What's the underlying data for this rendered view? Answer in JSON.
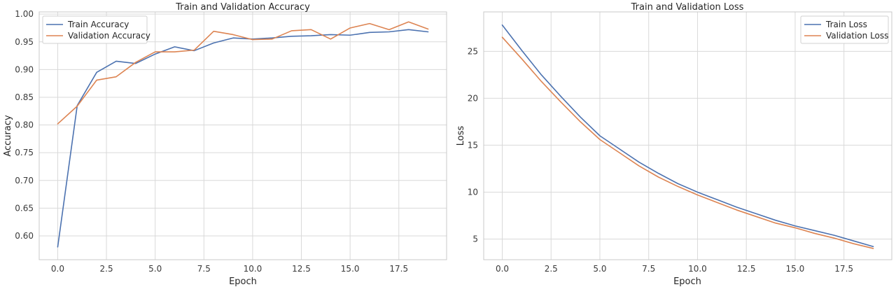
{
  "chart_data": [
    {
      "type": "line",
      "title": "Train and Validation Accuracy",
      "xlabel": "Epoch",
      "ylabel": "Accuracy",
      "xlim": [
        -0.95,
        19.95
      ],
      "ylim": [
        0.557,
        1.004
      ],
      "xticks": [
        0.0,
        2.5,
        5.0,
        7.5,
        10.0,
        12.5,
        15.0,
        17.5
      ],
      "yticks": [
        0.6,
        0.65,
        0.7,
        0.75,
        0.8,
        0.85,
        0.9,
        0.95,
        1.0
      ],
      "xtick_labels": [
        "0.0",
        "2.5",
        "5.0",
        "7.5",
        "10.0",
        "12.5",
        "15.0",
        "17.5"
      ],
      "ytick_labels": [
        "0.60",
        "0.65",
        "0.70",
        "0.75",
        "0.80",
        "0.85",
        "0.90",
        "0.95",
        "1.00"
      ],
      "grid": true,
      "legend": "top-left",
      "x": [
        0,
        1,
        2,
        3,
        4,
        5,
        6,
        7,
        8,
        9,
        10,
        11,
        12,
        13,
        14,
        15,
        16,
        17,
        18,
        19
      ],
      "series": [
        {
          "name": "Train Accuracy",
          "color": "#4c72b0",
          "values": [
            0.58,
            0.835,
            0.895,
            0.915,
            0.911,
            0.928,
            0.941,
            0.934,
            0.948,
            0.957,
            0.955,
            0.957,
            0.96,
            0.961,
            0.963,
            0.962,
            0.967,
            0.968,
            0.972,
            0.968
          ]
        },
        {
          "name": "Validation Accuracy",
          "color": "#dd8452",
          "values": [
            0.802,
            0.834,
            0.881,
            0.887,
            0.913,
            0.932,
            0.932,
            0.935,
            0.969,
            0.963,
            0.954,
            0.955,
            0.97,
            0.972,
            0.955,
            0.975,
            0.983,
            0.972,
            0.986,
            0.973
          ]
        }
      ]
    },
    {
      "type": "line",
      "title": "Train and Validation Loss",
      "xlabel": "Epoch",
      "ylabel": "Loss",
      "xlim": [
        -0.95,
        19.95
      ],
      "ylim": [
        2.8,
        29.2
      ],
      "xticks": [
        0.0,
        2.5,
        5.0,
        7.5,
        10.0,
        12.5,
        15.0,
        17.5
      ],
      "yticks": [
        5,
        10,
        15,
        20,
        25
      ],
      "xtick_labels": [
        "0.0",
        "2.5",
        "5.0",
        "7.5",
        "10.0",
        "12.5",
        "15.0",
        "17.5"
      ],
      "ytick_labels": [
        "5",
        "10",
        "15",
        "20",
        "25"
      ],
      "grid": true,
      "legend": "top-right",
      "x": [
        0,
        1,
        2,
        3,
        4,
        5,
        6,
        7,
        8,
        9,
        10,
        11,
        12,
        13,
        14,
        15,
        16,
        17,
        18,
        19
      ],
      "series": [
        {
          "name": "Train Loss",
          "color": "#4c72b0",
          "values": [
            27.8,
            25.1,
            22.5,
            20.2,
            18.0,
            16.0,
            14.6,
            13.2,
            12.0,
            10.9,
            10.0,
            9.2,
            8.4,
            7.7,
            7.0,
            6.4,
            5.9,
            5.4,
            4.8,
            4.2
          ]
        },
        {
          "name": "Validation Loss",
          "color": "#dd8452",
          "values": [
            26.5,
            24.2,
            21.8,
            19.6,
            17.5,
            15.6,
            14.2,
            12.8,
            11.6,
            10.6,
            9.7,
            8.9,
            8.1,
            7.4,
            6.7,
            6.2,
            5.6,
            5.1,
            4.5,
            4.0
          ]
        }
      ]
    }
  ]
}
